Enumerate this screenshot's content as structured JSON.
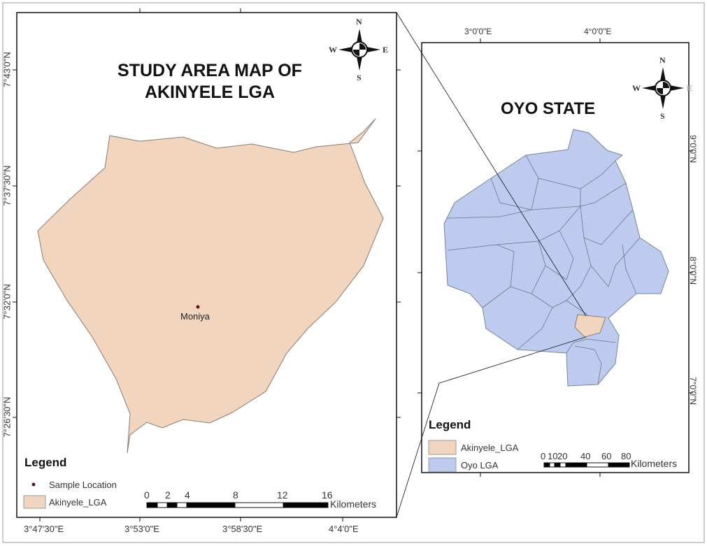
{
  "main_map": {
    "title_line1": "STUDY AREA MAP OF",
    "title_line2": "AKINYELE LGA",
    "place_label": "Moniya",
    "x_ticks": [
      "3°47'30\"E",
      "3°53'0\"E",
      "3°58'30\"E",
      "4°4'0\"E"
    ],
    "y_ticks": [
      "7°43'0\"N",
      "7°37'30\"N",
      "7°32'0\"N",
      "7°26'30\"N"
    ],
    "legend": {
      "heading": "Legend",
      "items": [
        {
          "label": "Sample Location",
          "symbol": "point",
          "color": "#5a1a1a"
        },
        {
          "label": "Akinyele_LGA",
          "symbol": "polygon",
          "color": "#f2d5bf"
        }
      ]
    },
    "scale_bar": {
      "ticks": [
        "0",
        "2",
        "4",
        "8",
        "12",
        "16"
      ],
      "unit": "Kilometers"
    },
    "compass": {
      "n": "N",
      "s": "S",
      "e": "E",
      "w": "W"
    }
  },
  "inset_map": {
    "title": "OYO STATE",
    "x_ticks": [
      "3°0'0\"E",
      "4°0'0\"E"
    ],
    "y_ticks": [
      "9°0'0\"N",
      "8°0'0\"N",
      "7°0'0\"N"
    ],
    "legend": {
      "heading": "Legend",
      "items": [
        {
          "label": "Akinyele_LGA",
          "color": "#f2d5bf"
        },
        {
          "label": "Oyo LGA",
          "color": "#bccbee"
        }
      ]
    },
    "scale_bar": {
      "ticks": [
        "0",
        "10",
        "20",
        "40",
        "60",
        "80"
      ],
      "unit": "Kilometers"
    },
    "compass": {
      "n": "N",
      "s": "S",
      "e": "E",
      "w": "W"
    }
  }
}
